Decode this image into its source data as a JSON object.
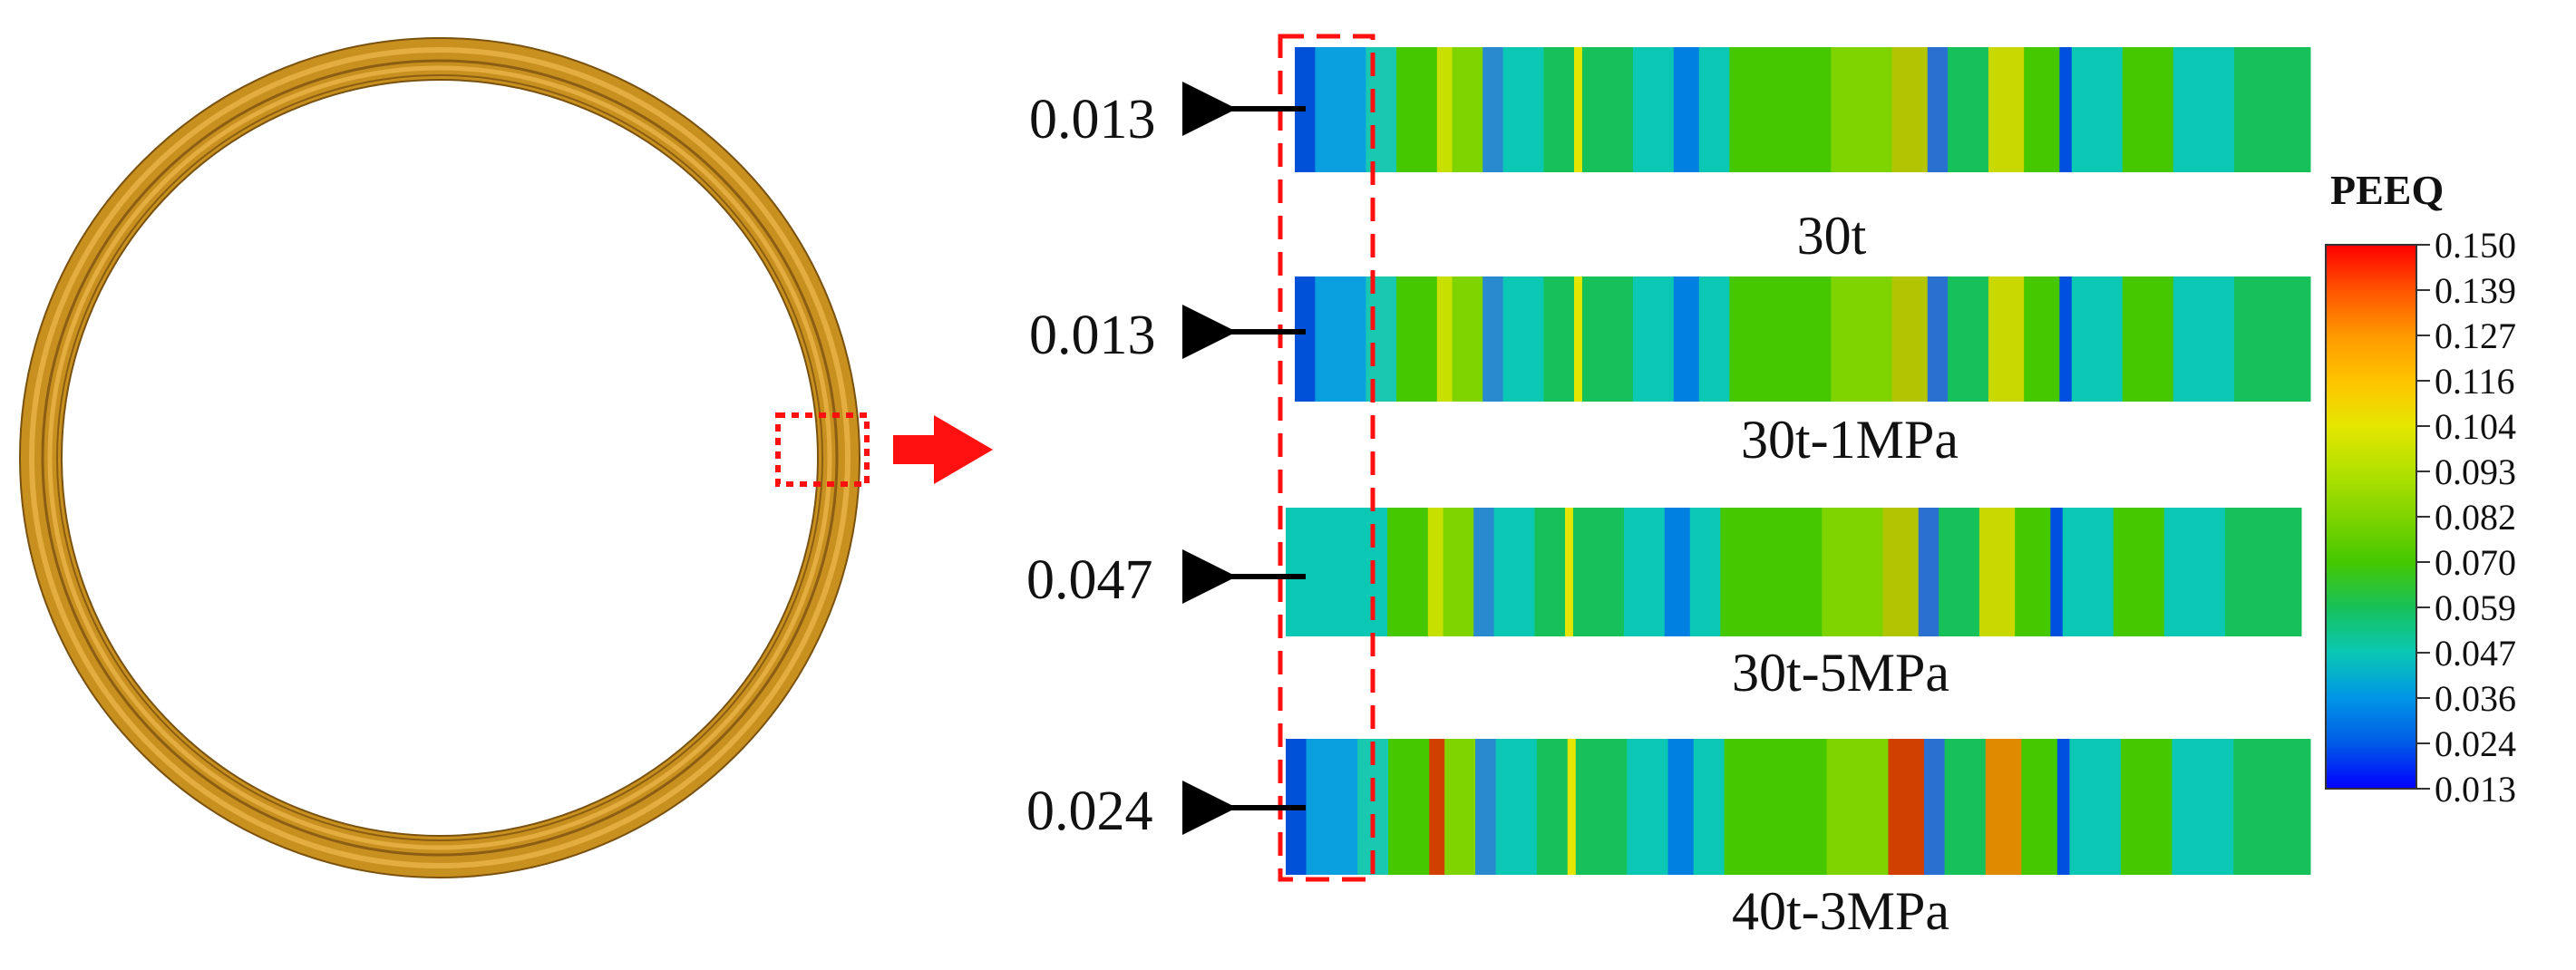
{
  "legend": {
    "title": "PEEQ",
    "ticks": [
      "0.150",
      "0.139",
      "0.127",
      "0.116",
      "0.104",
      "0.093",
      "0.082",
      "0.070",
      "0.059",
      "0.047",
      "0.036",
      "0.024",
      "0.013"
    ],
    "colors": [
      "#ff0000",
      "#ff5300",
      "#ff9900",
      "#ffc400",
      "#e5e600",
      "#b3e100",
      "#7fd400",
      "#45c800",
      "#17c15a",
      "#0ac8b4",
      "#0096e6",
      "#005ae6",
      "#0000ff"
    ]
  },
  "panels": [
    {
      "caption": "30t",
      "min_value": "0.013",
      "base_color": "#26c642"
    },
    {
      "caption": "30t-1MPa",
      "min_value": "0.013",
      "base_color": "#26c642"
    },
    {
      "caption": "30t-5MPa",
      "min_value": "0.047",
      "base_color": "#22c25a"
    },
    {
      "caption": "40t-3MPa",
      "min_value": "0.024",
      "base_color": "#3cc838"
    }
  ],
  "ring": {
    "outer_color": "#c8901e",
    "band_color": "#e0a93a",
    "edge_color": "#7a5210"
  },
  "colors": {
    "highlight": "#ff1010",
    "arrow": "#000000"
  }
}
